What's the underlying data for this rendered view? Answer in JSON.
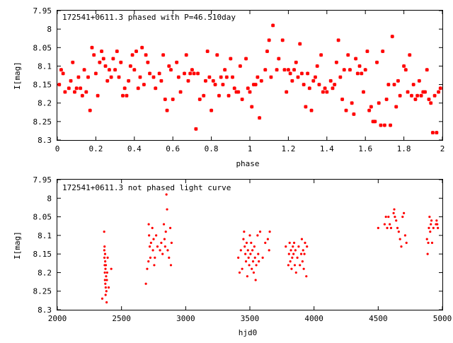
{
  "colors": {
    "points": "#ff0000",
    "axis": "#000000",
    "background": "#ffffff"
  },
  "chart_data": [
    {
      "type": "scatter",
      "title": "172541+0611.3 phased with P=46.510day",
      "xlabel": "phase",
      "ylabel": "I[mag]",
      "xlim": [
        0,
        2
      ],
      "ylim": [
        7.95,
        8.3
      ],
      "y_inverted": true,
      "grid": false,
      "marker": "star",
      "xticks": [
        "0",
        "0.2",
        "0.4",
        "0.6",
        "0.8",
        "1",
        "1.2",
        "1.4",
        "1.6",
        "1.8",
        "2"
      ],
      "xtick_values": [
        0,
        0.2,
        0.4,
        0.6,
        0.8,
        1.0,
        1.2,
        1.4,
        1.6,
        1.8,
        2.0
      ],
      "yticks": [
        "7.95",
        "8",
        "8.05",
        "8.1",
        "8.15",
        "8.2",
        "8.25",
        "8.3"
      ],
      "ytick_values": [
        7.95,
        8.0,
        8.05,
        8.1,
        8.15,
        8.2,
        8.25,
        8.3
      ],
      "points": [
        [
          0.01,
          8.15
        ],
        [
          0.02,
          8.11
        ],
        [
          0.03,
          8.12
        ],
        [
          0.04,
          8.17
        ],
        [
          0.06,
          8.16
        ],
        [
          0.07,
          8.14
        ],
        [
          0.08,
          8.09
        ],
        [
          0.09,
          8.17
        ],
        [
          0.1,
          8.16
        ],
        [
          0.11,
          8.13
        ],
        [
          0.12,
          8.16
        ],
        [
          0.13,
          8.18
        ],
        [
          0.14,
          8.11
        ],
        [
          0.15,
          8.17
        ],
        [
          0.16,
          8.13
        ],
        [
          0.17,
          8.22
        ],
        [
          0.18,
          8.05
        ],
        [
          0.19,
          8.07
        ],
        [
          0.2,
          8.12
        ],
        [
          0.21,
          8.18
        ],
        [
          0.22,
          8.09
        ],
        [
          0.23,
          8.06
        ],
        [
          0.24,
          8.08
        ],
        [
          0.25,
          8.1
        ],
        [
          0.26,
          8.14
        ],
        [
          0.27,
          8.11
        ],
        [
          0.28,
          8.13
        ],
        [
          0.29,
          8.08
        ],
        [
          0.3,
          8.11
        ],
        [
          0.31,
          8.06
        ],
        [
          0.32,
          8.13
        ],
        [
          0.33,
          8.09
        ],
        [
          0.34,
          8.18
        ],
        [
          0.35,
          8.16
        ],
        [
          0.36,
          8.18
        ],
        [
          0.37,
          8.14
        ],
        [
          0.38,
          8.1
        ],
        [
          0.39,
          8.07
        ],
        [
          0.4,
          8.11
        ],
        [
          0.41,
          8.06
        ],
        [
          0.42,
          8.16
        ],
        [
          0.43,
          8.13
        ],
        [
          0.44,
          8.05
        ],
        [
          0.45,
          8.15
        ],
        [
          0.46,
          8.07
        ],
        [
          0.47,
          8.09
        ],
        [
          0.48,
          8.12
        ],
        [
          0.5,
          8.13
        ],
        [
          0.51,
          8.16
        ],
        [
          0.53,
          8.12
        ],
        [
          0.54,
          8.14
        ],
        [
          0.55,
          8.07
        ],
        [
          0.56,
          8.19
        ],
        [
          0.57,
          8.22
        ],
        [
          0.58,
          8.1
        ],
        [
          0.59,
          8.11
        ],
        [
          0.6,
          8.19
        ],
        [
          0.62,
          8.09
        ],
        [
          0.63,
          8.13
        ],
        [
          0.64,
          8.17
        ],
        [
          0.66,
          8.12
        ],
        [
          0.67,
          8.07
        ],
        [
          0.68,
          8.14
        ],
        [
          0.69,
          8.12
        ],
        [
          0.7,
          8.11
        ],
        [
          0.71,
          8.12
        ],
        [
          0.72,
          8.27
        ],
        [
          0.73,
          8.12
        ],
        [
          0.74,
          8.19
        ],
        [
          0.76,
          8.18
        ],
        [
          0.77,
          8.14
        ],
        [
          0.78,
          8.06
        ],
        [
          0.79,
          8.13
        ],
        [
          0.8,
          8.22
        ],
        [
          0.81,
          8.14
        ],
        [
          0.82,
          8.15
        ],
        [
          0.83,
          8.07
        ],
        [
          0.84,
          8.18
        ],
        [
          0.85,
          8.13
        ],
        [
          0.86,
          8.15
        ],
        [
          0.87,
          8.11
        ],
        [
          0.88,
          8.13
        ],
        [
          0.89,
          8.18
        ],
        [
          0.9,
          8.08
        ],
        [
          0.91,
          8.13
        ],
        [
          0.92,
          8.16
        ],
        [
          0.93,
          8.17
        ],
        [
          0.94,
          8.17
        ],
        [
          0.95,
          8.1
        ],
        [
          0.96,
          8.19
        ],
        [
          0.98,
          8.08
        ],
        [
          0.99,
          8.16
        ],
        [
          1.0,
          8.17
        ],
        [
          1.01,
          8.21
        ],
        [
          1.02,
          8.15
        ],
        [
          1.03,
          8.15
        ],
        [
          1.04,
          8.13
        ],
        [
          1.05,
          8.24
        ],
        [
          1.06,
          8.14
        ],
        [
          1.08,
          8.11
        ],
        [
          1.09,
          8.06
        ],
        [
          1.1,
          8.03
        ],
        [
          1.11,
          8.13
        ],
        [
          1.12,
          7.99
        ],
        [
          1.14,
          8.11
        ],
        [
          1.15,
          8.08
        ],
        [
          1.17,
          8.03
        ],
        [
          1.18,
          8.11
        ],
        [
          1.19,
          8.17
        ],
        [
          1.2,
          8.11
        ],
        [
          1.21,
          8.12
        ],
        [
          1.22,
          8.14
        ],
        [
          1.23,
          8.11
        ],
        [
          1.24,
          8.09
        ],
        [
          1.25,
          8.13
        ],
        [
          1.26,
          8.04
        ],
        [
          1.27,
          8.12
        ],
        [
          1.28,
          8.15
        ],
        [
          1.29,
          8.21
        ],
        [
          1.3,
          8.12
        ],
        [
          1.31,
          8.16
        ],
        [
          1.32,
          8.22
        ],
        [
          1.33,
          8.14
        ],
        [
          1.34,
          8.13
        ],
        [
          1.35,
          8.1
        ],
        [
          1.36,
          8.15
        ],
        [
          1.37,
          8.07
        ],
        [
          1.38,
          8.17
        ],
        [
          1.39,
          8.16
        ],
        [
          1.4,
          8.17
        ],
        [
          1.42,
          8.14
        ],
        [
          1.43,
          8.16
        ],
        [
          1.44,
          8.15
        ],
        [
          1.45,
          8.09
        ],
        [
          1.46,
          8.03
        ],
        [
          1.47,
          8.13
        ],
        [
          1.48,
          8.19
        ],
        [
          1.49,
          8.11
        ],
        [
          1.5,
          8.22
        ],
        [
          1.51,
          8.07
        ],
        [
          1.52,
          8.11
        ],
        [
          1.53,
          8.2
        ],
        [
          1.54,
          8.23
        ],
        [
          1.55,
          8.08
        ],
        [
          1.56,
          8.12
        ],
        [
          1.57,
          8.1
        ],
        [
          1.58,
          8.12
        ],
        [
          1.59,
          8.17
        ],
        [
          1.6,
          8.11
        ],
        [
          1.61,
          8.06
        ],
        [
          1.62,
          8.22
        ],
        [
          1.63,
          8.21
        ],
        [
          1.64,
          8.25
        ],
        [
          1.65,
          8.25
        ],
        [
          1.66,
          8.09
        ],
        [
          1.67,
          8.2
        ],
        [
          1.68,
          8.26
        ],
        [
          1.69,
          8.06
        ],
        [
          1.7,
          8.26
        ],
        [
          1.71,
          8.19
        ],
        [
          1.72,
          8.15
        ],
        [
          1.73,
          8.26
        ],
        [
          1.74,
          8.02
        ],
        [
          1.75,
          8.15
        ],
        [
          1.76,
          8.21
        ],
        [
          1.77,
          8.14
        ],
        [
          1.78,
          8.18
        ],
        [
          1.8,
          8.1
        ],
        [
          1.81,
          8.11
        ],
        [
          1.82,
          8.17
        ],
        [
          1.83,
          8.07
        ],
        [
          1.84,
          8.18
        ],
        [
          1.85,
          8.15
        ],
        [
          1.86,
          8.19
        ],
        [
          1.87,
          8.18
        ],
        [
          1.88,
          8.14
        ],
        [
          1.89,
          8.18
        ],
        [
          1.9,
          8.17
        ],
        [
          1.91,
          8.17
        ],
        [
          1.92,
          8.11
        ],
        [
          1.93,
          8.19
        ],
        [
          1.94,
          8.2
        ],
        [
          1.95,
          8.28
        ],
        [
          1.96,
          8.18
        ],
        [
          1.97,
          8.28
        ],
        [
          1.98,
          8.17
        ],
        [
          1.99,
          8.16
        ]
      ]
    },
    {
      "type": "scatter",
      "title": "172541+0611.3 not phased light curve",
      "xlabel": "hjd0",
      "ylabel": "I[mag]",
      "xlim": [
        2000,
        5000
      ],
      "ylim": [
        7.95,
        8.3
      ],
      "y_inverted": true,
      "grid": false,
      "marker": "dot",
      "xticks": [
        "2000",
        "2500",
        "3000",
        "3500",
        "4000",
        "4500",
        "5000"
      ],
      "xtick_values": [
        2000,
        2500,
        3000,
        3500,
        4000,
        4500,
        5000
      ],
      "yticks": [
        "7.95",
        "8",
        "8.05",
        "8.1",
        "8.15",
        "8.2",
        "8.25",
        "8.3"
      ],
      "ytick_values": [
        7.95,
        8.0,
        8.05,
        8.1,
        8.15,
        8.2,
        8.25,
        8.3
      ],
      "points": [
        [
          2350,
          8.27
        ],
        [
          2365,
          8.09
        ],
        [
          2366,
          8.14
        ],
        [
          2367,
          8.16
        ],
        [
          2368,
          8.13
        ],
        [
          2369,
          8.18
        ],
        [
          2370,
          8.2
        ],
        [
          2371,
          8.22
        ],
        [
          2372,
          8.15
        ],
        [
          2373,
          8.17
        ],
        [
          2374,
          8.23
        ],
        [
          2375,
          8.19
        ],
        [
          2376,
          8.26
        ],
        [
          2377,
          8.24
        ],
        [
          2378,
          8.18
        ],
        [
          2380,
          8.21
        ],
        [
          2382,
          8.25
        ],
        [
          2384,
          8.28
        ],
        [
          2386,
          8.22
        ],
        [
          2388,
          8.2
        ],
        [
          2392,
          8.16
        ],
        [
          2400,
          8.24
        ],
        [
          2420,
          8.19
        ],
        [
          2690,
          8.23
        ],
        [
          2700,
          8.19
        ],
        [
          2710,
          8.17
        ],
        [
          2712,
          8.07
        ],
        [
          2715,
          8.1
        ],
        [
          2720,
          8.13
        ],
        [
          2725,
          8.16
        ],
        [
          2730,
          8.12
        ],
        [
          2740,
          8.08
        ],
        [
          2745,
          8.14
        ],
        [
          2750,
          8.11
        ],
        [
          2755,
          8.18
        ],
        [
          2760,
          8.16
        ],
        [
          2770,
          8.1
        ],
        [
          2780,
          8.13
        ],
        [
          2800,
          8.14
        ],
        [
          2810,
          8.12
        ],
        [
          2820,
          8.15
        ],
        [
          2830,
          8.07
        ],
        [
          2835,
          8.11
        ],
        [
          2840,
          8.13
        ],
        [
          2845,
          8.09
        ],
        [
          2850,
          7.99
        ],
        [
          2855,
          8.03
        ],
        [
          2860,
          8.14
        ],
        [
          2870,
          8.16
        ],
        [
          2880,
          8.08
        ],
        [
          2885,
          8.18
        ],
        [
          2890,
          8.12
        ],
        [
          3410,
          8.16
        ],
        [
          3420,
          8.2
        ],
        [
          3430,
          8.14
        ],
        [
          3440,
          8.19
        ],
        [
          3450,
          8.11
        ],
        [
          3455,
          8.09
        ],
        [
          3460,
          8.13
        ],
        [
          3465,
          8.15
        ],
        [
          3470,
          8.17
        ],
        [
          3475,
          8.12
        ],
        [
          3480,
          8.21
        ],
        [
          3485,
          8.14
        ],
        [
          3490,
          8.16
        ],
        [
          3495,
          8.18
        ],
        [
          3500,
          8.1
        ],
        [
          3505,
          8.15
        ],
        [
          3510,
          8.12
        ],
        [
          3515,
          8.19
        ],
        [
          3520,
          8.14
        ],
        [
          3525,
          8.17
        ],
        [
          3530,
          8.2
        ],
        [
          3535,
          8.13
        ],
        [
          3540,
          8.16
        ],
        [
          3545,
          8.22
        ],
        [
          3550,
          8.18
        ],
        [
          3560,
          8.1
        ],
        [
          3565,
          8.15
        ],
        [
          3570,
          8.17
        ],
        [
          3580,
          8.09
        ],
        [
          3600,
          8.16
        ],
        [
          3620,
          8.12
        ],
        [
          3640,
          8.11
        ],
        [
          3650,
          8.14
        ],
        [
          3655,
          8.09
        ],
        [
          3780,
          8.13
        ],
        [
          3800,
          8.18
        ],
        [
          3805,
          8.15
        ],
        [
          3810,
          8.12
        ],
        [
          3815,
          8.17
        ],
        [
          3820,
          8.14
        ],
        [
          3825,
          8.19
        ],
        [
          3830,
          8.16
        ],
        [
          3835,
          8.13
        ],
        [
          3840,
          8.15
        ],
        [
          3845,
          8.12
        ],
        [
          3850,
          8.18
        ],
        [
          3855,
          8.14
        ],
        [
          3860,
          8.2
        ],
        [
          3870,
          8.16
        ],
        [
          3880,
          8.13
        ],
        [
          3890,
          8.18
        ],
        [
          3900,
          8.15
        ],
        [
          3905,
          8.11
        ],
        [
          3910,
          8.17
        ],
        [
          3915,
          8.14
        ],
        [
          3920,
          8.19
        ],
        [
          3925,
          8.15
        ],
        [
          3930,
          8.12
        ],
        [
          3940,
          8.21
        ],
        [
          3945,
          8.13
        ],
        [
          4500,
          8.08
        ],
        [
          4550,
          8.07
        ],
        [
          4560,
          8.05
        ],
        [
          4570,
          8.08
        ],
        [
          4580,
          8.05
        ],
        [
          4590,
          8.07
        ],
        [
          4600,
          8.08
        ],
        [
          4620,
          8.04
        ],
        [
          4625,
          8.03
        ],
        [
          4630,
          8.05
        ],
        [
          4640,
          8.06
        ],
        [
          4650,
          8.08
        ],
        [
          4660,
          8.09
        ],
        [
          4670,
          8.11
        ],
        [
          4680,
          8.13
        ],
        [
          4690,
          8.05
        ],
        [
          4700,
          8.04
        ],
        [
          4710,
          8.1
        ],
        [
          4720,
          8.12
        ],
        [
          4880,
          8.11
        ],
        [
          4885,
          8.15
        ],
        [
          4890,
          8.12
        ],
        [
          4895,
          8.08
        ],
        [
          4900,
          8.05
        ],
        [
          4905,
          8.09
        ],
        [
          4910,
          8.07
        ],
        [
          4915,
          8.06
        ],
        [
          4920,
          8.12
        ],
        [
          4930,
          8.08
        ],
        [
          4950,
          8.07
        ],
        [
          4955,
          8.06
        ],
        [
          4960,
          8.07
        ],
        [
          4965,
          8.08
        ]
      ]
    }
  ]
}
